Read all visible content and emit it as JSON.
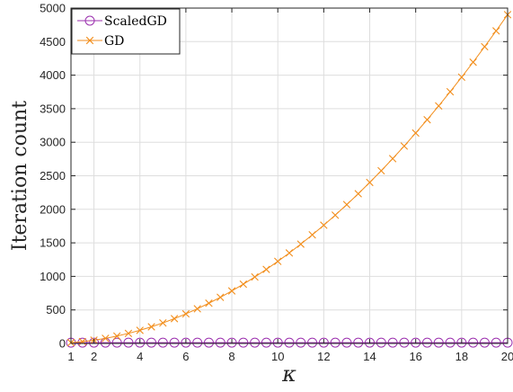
{
  "chart_data": {
    "type": "line",
    "xlabel": "κ",
    "ylabel": "Iteration count",
    "xlim": [
      1,
      20
    ],
    "ylim": [
      0,
      5000
    ],
    "xticks": [
      1,
      2,
      4,
      6,
      8,
      10,
      12,
      14,
      16,
      18,
      20
    ],
    "yticks": [
      0,
      500,
      1000,
      1500,
      2000,
      2500,
      3000,
      3500,
      4000,
      4500,
      5000
    ],
    "grid": true,
    "legend_position": "top-left",
    "series": [
      {
        "name": "ScaledGD",
        "marker": "circle",
        "color": "#9b2fae",
        "x": [
          1,
          1.5,
          2,
          2.5,
          3,
          3.5,
          4,
          4.5,
          5,
          5.5,
          6,
          6.5,
          7,
          7.5,
          8,
          8.5,
          9,
          9.5,
          10,
          10.5,
          11,
          11.5,
          12,
          12.5,
          13,
          13.5,
          14,
          14.5,
          15,
          15.5,
          16,
          16.5,
          17,
          17.5,
          18,
          18.5,
          19,
          19.5,
          20
        ],
        "values": [
          12,
          12,
          12,
          12,
          12,
          12,
          12,
          12,
          12,
          12,
          12,
          12,
          12,
          12,
          12,
          12,
          12,
          12,
          12,
          12,
          12,
          12,
          12,
          12,
          12,
          12,
          12,
          12,
          12,
          12,
          12,
          12,
          12,
          12,
          12,
          12,
          12,
          12,
          12
        ]
      },
      {
        "name": "GD",
        "marker": "x",
        "color": "#f28e1c",
        "x": [
          1,
          1.5,
          2,
          2.5,
          3,
          3.5,
          4,
          4.5,
          5,
          5.5,
          6,
          6.5,
          7,
          7.5,
          8,
          8.5,
          9,
          9.5,
          10,
          10.5,
          11,
          11.5,
          12,
          12.5,
          13,
          13.5,
          14,
          14.5,
          15,
          15.5,
          16,
          16.5,
          17,
          17.5,
          18,
          18.5,
          19,
          19.5,
          20
        ],
        "values": [
          12,
          27,
          49,
          76,
          110,
          150,
          196,
          248,
          306,
          370,
          441,
          517,
          600,
          688,
          783,
          884,
          991,
          1104,
          1224,
          1349,
          1481,
          1619,
          1763,
          1913,
          2070,
          2232,
          2401,
          2575,
          2756,
          2943,
          3137,
          3336,
          3541,
          3753,
          3970,
          4194,
          4424,
          4660,
          4902
        ]
      }
    ]
  }
}
